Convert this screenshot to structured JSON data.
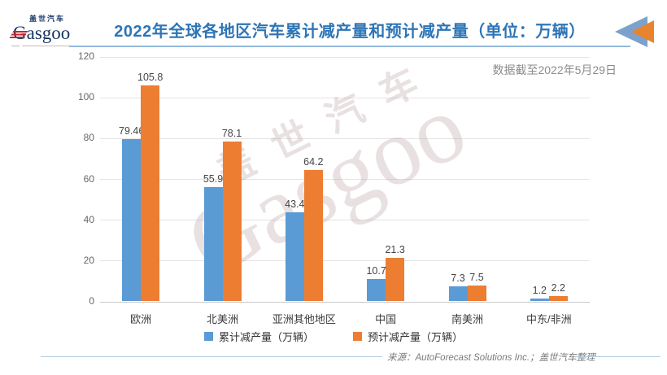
{
  "header": {
    "logo_cn": "盖世汽车",
    "logo_en": "Gasgoo",
    "title": "2022年全球各地区汽车累计减产量和预计减产量（单位：万辆）",
    "note": "数据截至2022年5月29日"
  },
  "watermark": {
    "cn": "盖世汽车",
    "en": "Gasgoo"
  },
  "chart_data": {
    "type": "bar",
    "title": "2022年全球各地区汽车累计减产量和预计减产量（单位：万辆）",
    "categories": [
      "欧洲",
      "北美洲",
      "亚洲其他地区",
      "中国",
      "南美洲",
      "中东/非洲"
    ],
    "series": [
      {
        "name": "累计减产量（万辆）",
        "color": "#5B9BD5",
        "values": [
          79.46,
          55.9,
          43.4,
          10.7,
          7.3,
          1.2
        ]
      },
      {
        "name": "预计减产量（万辆）",
        "color": "#ED7D31",
        "values": [
          105.8,
          78.1,
          64.2,
          21.3,
          7.5,
          2.2
        ]
      }
    ],
    "ylim": [
      0,
      120
    ],
    "yticks": [
      0,
      20,
      40,
      60,
      80,
      100,
      120
    ],
    "grid": true,
    "data_labels": true,
    "legend_position": "bottom"
  },
  "footer": {
    "source": "来源：AutoForecast Solutions Inc.；盖世汽车整理"
  }
}
